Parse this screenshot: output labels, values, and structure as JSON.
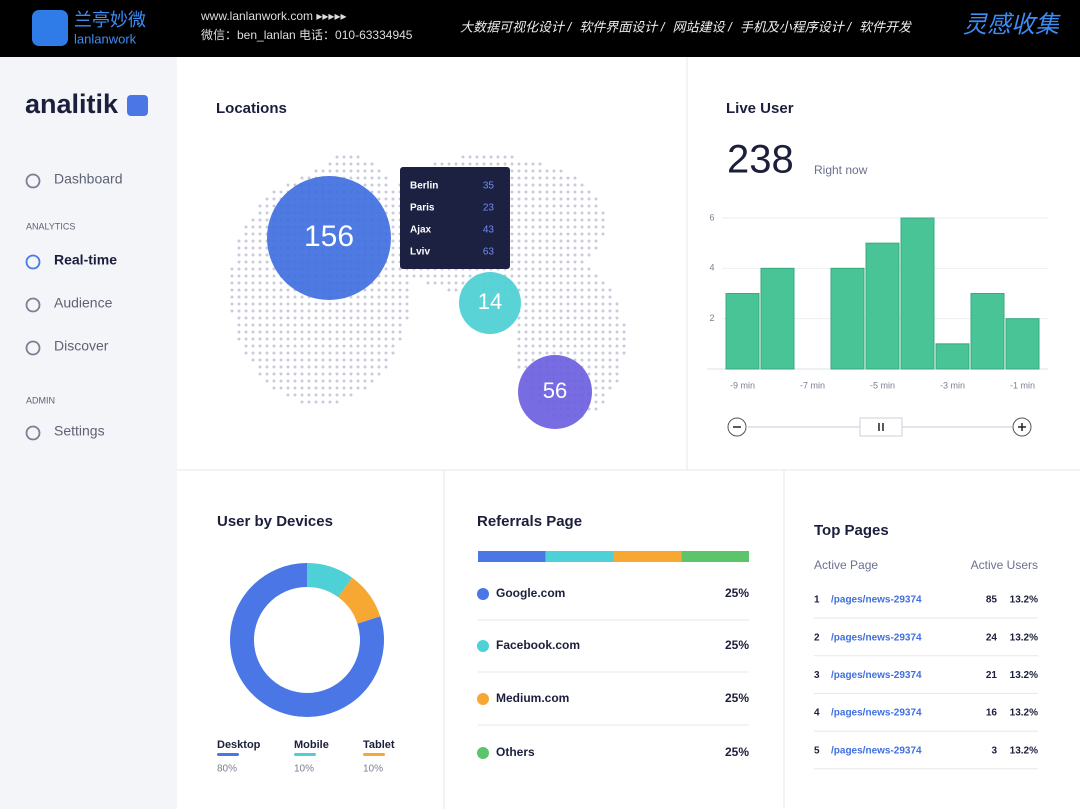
{
  "brand": {
    "name": "兰亭妙微",
    "sub": "lanlanwork",
    "url": "www.lanlanwork.com ▸▸▸▸▸",
    "contact": "微信：ben_lanlan    电话：010-63334945",
    "nav": [
      "大数据可视化设计  /",
      "软件界面设计  /",
      "网站建设  /",
      "手机及小程序设计  /",
      "软件开发"
    ],
    "right": "灵感收集"
  },
  "sidebar": {
    "logo": "analitik",
    "nav": [
      "Dashboard",
      "Real-time",
      "Audience",
      "Discover",
      "Settings"
    ],
    "sections": [
      "ANALYTICS",
      "ADMIN"
    ]
  },
  "locations": {
    "title": "Locations",
    "bubbles": [
      {
        "value": 156,
        "color": "#3f6fe0"
      },
      {
        "value": 14,
        "color": "#4ccfd4"
      },
      {
        "value": 56,
        "color": "#6b5fe0"
      }
    ],
    "tooltip": [
      [
        "Berlin",
        35
      ],
      [
        "Paris",
        23
      ],
      [
        "Ajax",
        43
      ],
      [
        "Lviv",
        63
      ]
    ]
  },
  "live_user": {
    "title": "Live User",
    "count": 238,
    "caption": "Right now",
    "chart": {
      "type": "bar",
      "categories": [
        "-9 min",
        null,
        "-7 min",
        null,
        "-5 min",
        null,
        "-3 min",
        null,
        "-1 min"
      ],
      "values": [
        3,
        4,
        0,
        4,
        5,
        6,
        1,
        3,
        2
      ],
      "color": "#48c496",
      "ylim": [
        0,
        6
      ],
      "yticks": [
        2,
        4,
        6
      ],
      "grid": true
    }
  },
  "devices": {
    "title": "User by Devices",
    "type": "donut",
    "categories": [
      "Desktop",
      "Mobile",
      "Tablet"
    ],
    "values": [
      80,
      10,
      10
    ],
    "value_labels": [
      "80%",
      "10%",
      "10%"
    ],
    "colors": [
      "#4a77e5",
      "#4dd0d6",
      "#f6a833"
    ]
  },
  "referrals": {
    "title": "Referrals Page",
    "type": "stacked-bar",
    "categories": [
      "Google.com",
      "Facebook.com",
      "Medium.com",
      "Others"
    ],
    "values": [
      25,
      25,
      25,
      25
    ],
    "value_labels": [
      "25%",
      "25%",
      "25%",
      "25%"
    ],
    "colors": [
      "#4a77e5",
      "#4dd0d6",
      "#f6a833",
      "#5cc46b"
    ]
  },
  "top_pages": {
    "title": "Top Pages",
    "columns": [
      "Active Page",
      "Active Users"
    ],
    "rows": [
      [
        1,
        "/pages/news-29374",
        85,
        "13.2%"
      ],
      [
        2,
        "/pages/news-29374",
        24,
        "13.2%"
      ],
      [
        3,
        "/pages/news-29374",
        21,
        "13.2%"
      ],
      [
        4,
        "/pages/news-29374",
        16,
        "13.2%"
      ],
      [
        5,
        "/pages/news-29374",
        3,
        "13.2%"
      ]
    ]
  }
}
